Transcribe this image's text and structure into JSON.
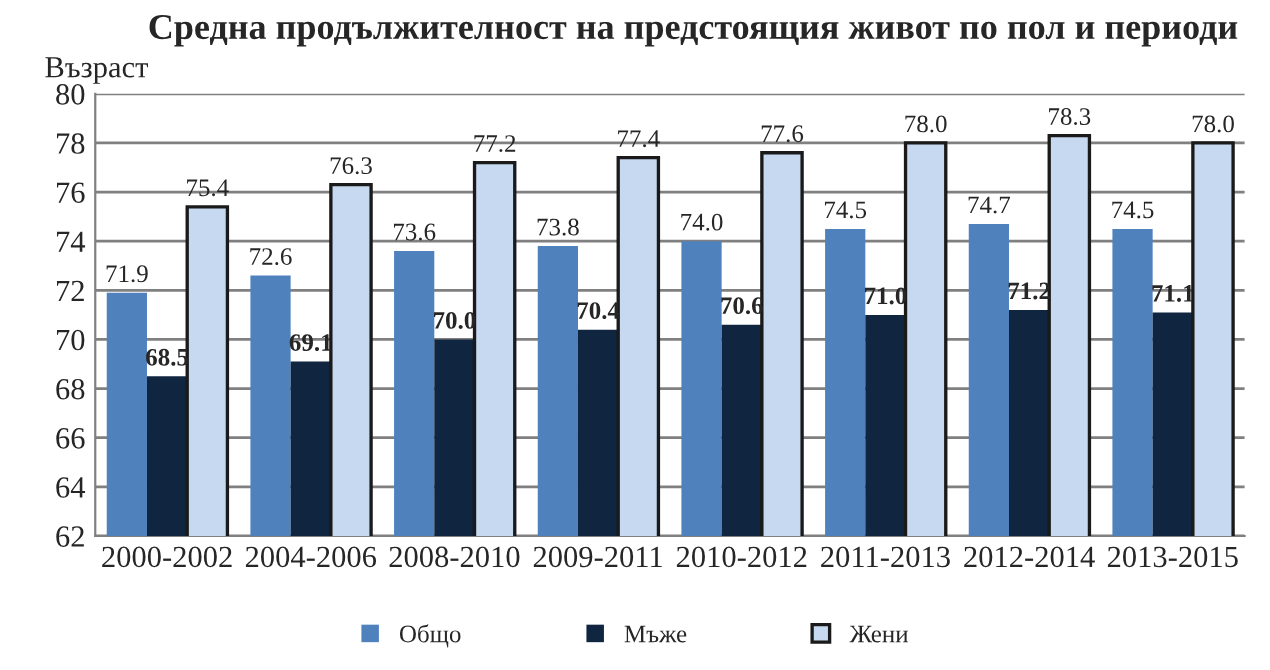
{
  "chart_data": {
    "type": "bar",
    "title": "Средна продължителност на предстоящия живот по пол и периоди",
    "ylabel": "Възраст",
    "categories": [
      "2000-2002",
      "2004-2006",
      "2008-2010",
      "2009-2011",
      "2010-2012",
      "2011-2013",
      "2012-2014",
      "2013-2015"
    ],
    "series": [
      {
        "name": "Общо",
        "color": "#4f81bd",
        "values": [
          71.9,
          72.6,
          73.6,
          73.8,
          74.0,
          74.5,
          74.7,
          74.5
        ],
        "value_labels": [
          "71.9",
          "72.6",
          "73.6",
          "73.8",
          "74.0",
          "74.5",
          "74.7",
          "74.5"
        ]
      },
      {
        "name": "Мъже",
        "color": "#10253f",
        "values": [
          68.5,
          69.1,
          70.0,
          70.4,
          70.6,
          71.0,
          71.2,
          71.1
        ],
        "value_labels": [
          "68.5",
          "69.1",
          "70.0",
          "70.4",
          "70.6",
          "71.0",
          "71.2",
          "71.1"
        ]
      },
      {
        "name": "Жени",
        "color": "#c6d9f1",
        "values": [
          75.4,
          76.3,
          77.2,
          77.4,
          77.6,
          78.0,
          78.3,
          78.0
        ],
        "value_labels": [
          "75.4",
          "76.3",
          "77.2",
          "77.4",
          "77.6",
          "78.0",
          "78.3",
          "78.0"
        ]
      }
    ],
    "ylim": [
      62,
      80
    ],
    "yticks": [
      62,
      64,
      66,
      68,
      70,
      72,
      74,
      76,
      78,
      80
    ],
    "grid": "y",
    "legend": "bottom"
  }
}
